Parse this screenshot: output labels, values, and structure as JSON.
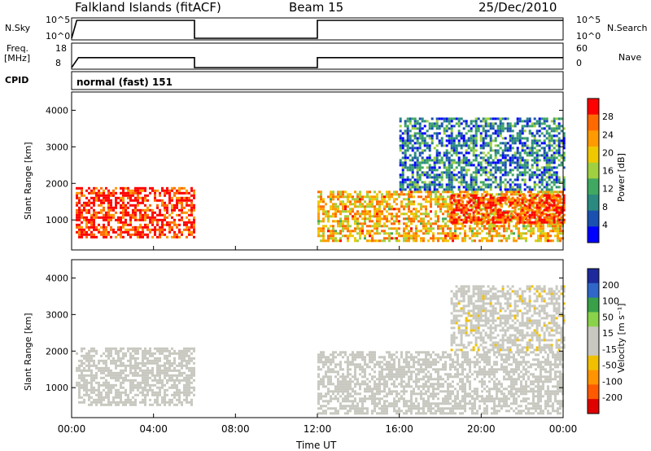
{
  "header": {
    "station": "Falkland Islands (fitACF)",
    "beam": "Beam 15",
    "date": "25/Dec/2010"
  },
  "strips": {
    "nsky_label": "N.Sky",
    "nsearch_label": "N.Search",
    "freq_label_1": "Freq.",
    "freq_label_2": "[MHz]",
    "nave_label": "Nave",
    "cpid_label": "CPID",
    "cpid_value": "normal (fast) 151",
    "nsky_ticks": [
      "10^5",
      "10^0"
    ],
    "nsearch_ticks": [
      "10^5",
      "10^0"
    ],
    "freq_ticks": [
      "18",
      "8"
    ],
    "nave_ticks": [
      "60",
      "0"
    ]
  },
  "axes": {
    "xlabel": "Time UT",
    "ylabel": "Slant Range [km]"
  },
  "colorbars": {
    "power": {
      "label": "Power [dB]",
      "ticks": [
        "28",
        "24",
        "20",
        "16",
        "12",
        "8",
        "4"
      ],
      "colors": [
        "#ff0000",
        "#ff6a00",
        "#ff9a00",
        "#f0c800",
        "#a0d040",
        "#40a860",
        "#2a8a80",
        "#1a50b0",
        "#0000ff"
      ]
    },
    "velocity": {
      "label": "Velocity [m s⁻¹]",
      "ticks": [
        "200",
        "100",
        "50",
        "15",
        "-15",
        "-50",
        "-100",
        "-200"
      ],
      "colors": [
        "#1e2a9c",
        "#2f66c8",
        "#39a04a",
        "#8ad24a",
        "#c8c8c0",
        "#c8c8c0",
        "#f0c000",
        "#ff9400",
        "#ff5a00",
        "#e00000"
      ]
    }
  },
  "chart_data": [
    {
      "type": "line",
      "title": "N.Sky / N.Search",
      "x": [
        "00:00",
        "00:15",
        "06:00",
        "06:00",
        "12:00",
        "12:00",
        "24:00"
      ],
      "series": [
        {
          "values": [
            0,
            5,
            5,
            0,
            0,
            5,
            5
          ]
        }
      ],
      "ylim": [
        0,
        5
      ],
      "y_scale": "log",
      "xlim": [
        0,
        24
      ]
    },
    {
      "type": "line",
      "title": "Freq. [MHz] / Nave",
      "x": [
        "00:00",
        "00:20",
        "06:00",
        "06:00",
        "12:00",
        "12:00",
        "24:00"
      ],
      "series": [
        {
          "values": [
            8,
            12.5,
            12.5,
            8,
            8,
            12.5,
            12.5
          ]
        }
      ],
      "ylim": [
        8,
        18
      ],
      "y2lim": [
        0,
        60
      ]
    },
    {
      "type": "heatmap",
      "title": "Power [dB]",
      "xlabel": "Time UT",
      "ylabel": "Slant Range [km]",
      "xticks": [
        "00:00",
        "04:00",
        "08:00",
        "12:00",
        "16:00",
        "20:00",
        "00:00"
      ],
      "yticks": [
        1000,
        2000,
        3000,
        4000
      ],
      "xlim": [
        0,
        24
      ],
      "ylim": [
        180,
        4500
      ],
      "gaps": [
        [
          6.0,
          12.0
        ]
      ],
      "regions": [
        {
          "t0": 0.2,
          "t1": 6.0,
          "r0": 500,
          "r1": 1900,
          "value": 28
        },
        {
          "t0": 12.0,
          "t1": 24.0,
          "r0": 400,
          "r1": 1800,
          "value": 20
        },
        {
          "t0": 18.5,
          "t1": 24.0,
          "r0": 900,
          "r1": 1700,
          "value": 28
        },
        {
          "t0": 16.0,
          "t1": 24.0,
          "r0": 1800,
          "r1": 3800,
          "value": 8
        }
      ],
      "colorbar_range": [
        0,
        30
      ]
    },
    {
      "type": "heatmap",
      "title": "Velocity [m s⁻¹]",
      "xlabel": "Time UT",
      "ylabel": "Slant Range [km]",
      "xticks": [
        "00:00",
        "04:00",
        "08:00",
        "12:00",
        "16:00",
        "20:00",
        "00:00"
      ],
      "yticks": [
        1000,
        2000,
        3000,
        4000
      ],
      "xlim": [
        0,
        24
      ],
      "ylim": [
        180,
        4500
      ],
      "gaps": [
        [
          6.0,
          12.0
        ]
      ],
      "regions": [
        {
          "t0": 0.2,
          "t1": 6.0,
          "r0": 500,
          "r1": 2100,
          "value": 0
        },
        {
          "t0": 12.0,
          "t1": 24.0,
          "r0": 300,
          "r1": 2000,
          "value": 0
        },
        {
          "t0": 18.5,
          "t1": 24.0,
          "r0": 2000,
          "r1": 3800,
          "value": -15
        }
      ],
      "colorbar_range": [
        -200,
        200
      ]
    }
  ]
}
